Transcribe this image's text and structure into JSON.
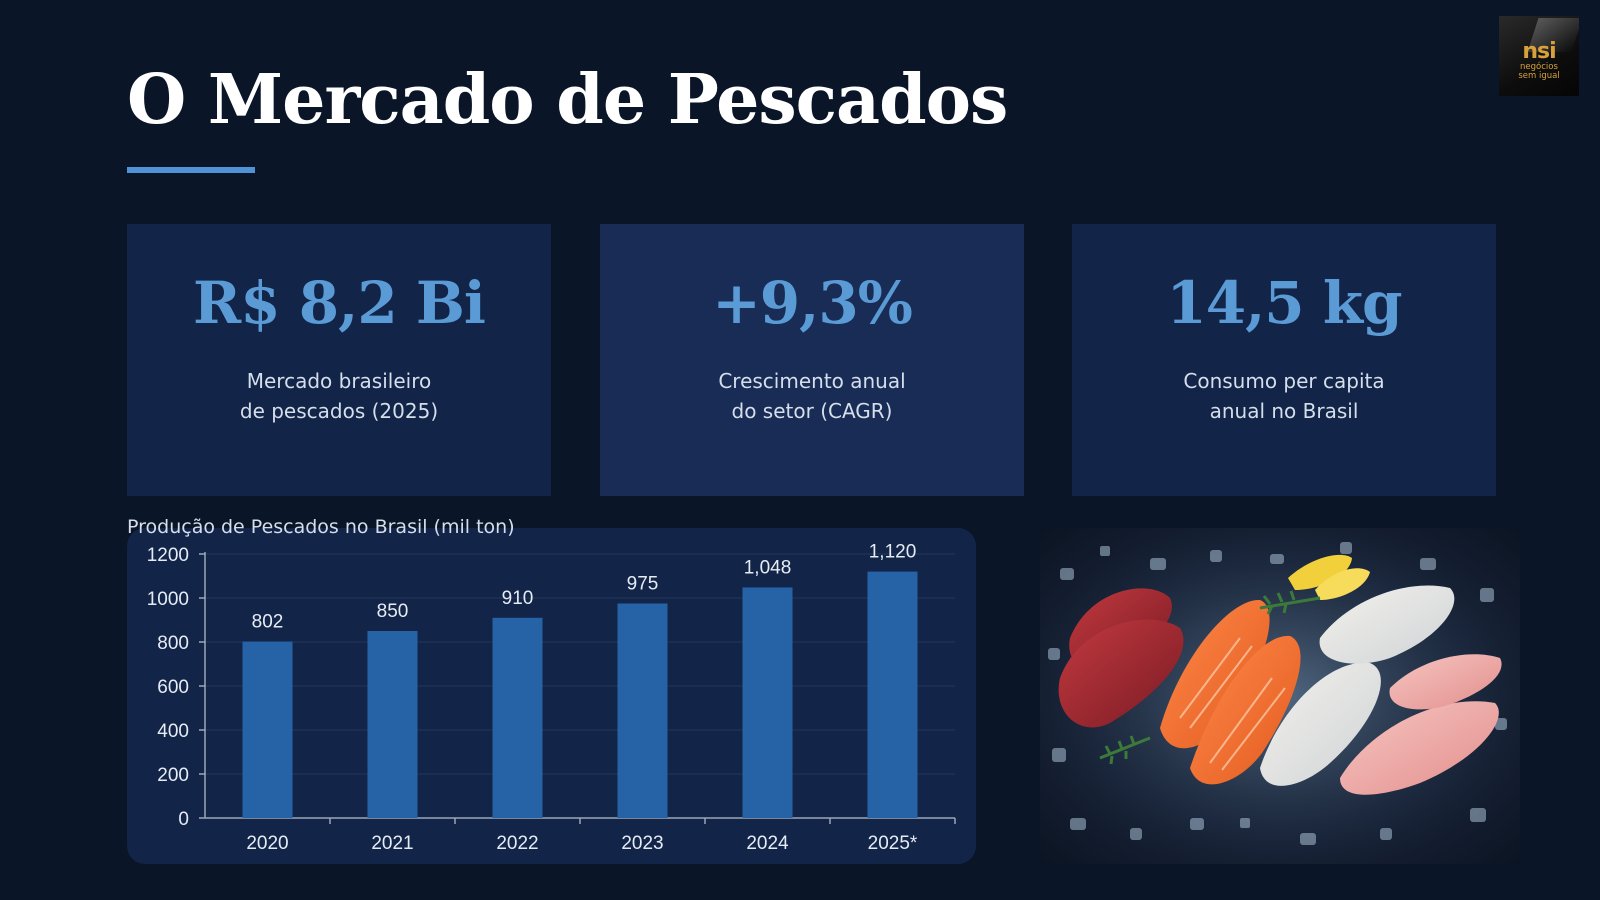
{
  "slide": {
    "title": "O Mercado de Pescados"
  },
  "logo": {
    "mark": "nsi",
    "tagline_line1": "negócios",
    "tagline_line2": "sem igual"
  },
  "stats": [
    {
      "value": "R$ 8,2 Bi",
      "label_line1": "Mercado brasileiro",
      "label_line2": "de pescados (2025)"
    },
    {
      "value": "+9,3%",
      "label_line1": "Crescimento anual",
      "label_line2": "do setor (CAGR)"
    },
    {
      "value": "14,5 kg",
      "label_line1": "Consumo per capita",
      "label_line2": "anual no Brasil"
    }
  ],
  "colors": {
    "background": "#0a1528",
    "card": "#122448",
    "accent": "#5b9bd5",
    "bar": "#2563a6"
  },
  "photo": {
    "icon": "fish-fillets-on-ice-photo"
  },
  "chart_data": {
    "type": "bar",
    "title": "Produção de Pescados no Brasil (mil ton)",
    "categories": [
      "2020",
      "2021",
      "2022",
      "2023",
      "2024",
      "2025*"
    ],
    "values": [
      802,
      850,
      910,
      975,
      1048,
      1120
    ],
    "data_labels": [
      "802",
      "850",
      "910",
      "975",
      "1,048",
      "1,120"
    ],
    "yticks": [
      "0",
      "200",
      "400",
      "600",
      "800",
      "1000",
      "1200"
    ],
    "ylim": [
      0,
      1200
    ],
    "grid": true,
    "legend": "none"
  }
}
